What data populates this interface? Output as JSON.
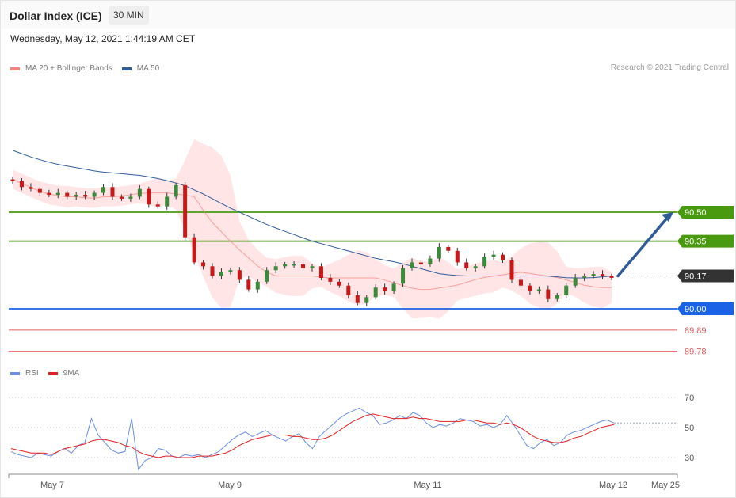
{
  "header": {
    "title": "Dollar Index (ICE)",
    "interval": "30 MIN",
    "datetime": "Wednesday, May 12, 2021 1:44:19 AM CET",
    "copyright": "Research © 2021 Trading Central"
  },
  "legend_main": [
    {
      "label": "MA 20 + Bollinger Bands",
      "color": "#f4827e"
    },
    {
      "label": "MA 50",
      "color": "#2f5b99"
    }
  ],
  "legend_rsi": [
    {
      "label": "RSI",
      "color": "#6a8ee0"
    },
    {
      "label": "9MA",
      "color": "#e02020"
    }
  ],
  "colors": {
    "up": "#3a8a3a",
    "down": "#c91818",
    "resistance": "#4a9a10",
    "support": "#1a63e6",
    "support_minor": "#e06060",
    "current": "#333333",
    "arrow": "#2f5b99",
    "bollinger_fill": "#ffdcdc"
  },
  "chart_data": {
    "type": "candlestick",
    "instrument": "Dollar Index (ICE)",
    "timeframe": "30 MIN",
    "x_tick_labels": [
      "May 7",
      "May 9",
      "May 11",
      "May 12",
      "May 25"
    ],
    "price_levels": [
      {
        "value": 90.5,
        "label": "90.50",
        "kind": "resistance"
      },
      {
        "value": 90.35,
        "label": "90.35",
        "kind": "resistance"
      },
      {
        "value": 90.17,
        "label": "90.17",
        "kind": "current"
      },
      {
        "value": 90.0,
        "label": "90.00",
        "kind": "support"
      },
      {
        "value": 89.89,
        "label": "89.89",
        "kind": "support_minor"
      },
      {
        "value": 89.78,
        "label": "89.78",
        "kind": "support_minor"
      }
    ],
    "price_ylim": [
      89.69,
      91.06
    ],
    "projection": {
      "from": 90.17,
      "to": 90.5,
      "direction": "up"
    },
    "close": [
      90.66,
      90.63,
      90.62,
      90.6,
      90.59,
      90.6,
      90.58,
      90.59,
      90.58,
      90.6,
      90.63,
      90.58,
      90.57,
      90.58,
      90.62,
      90.54,
      90.53,
      90.58,
      90.64,
      90.37,
      90.24,
      90.22,
      90.17,
      90.19,
      90.2,
      90.15,
      90.1,
      90.14,
      90.2,
      90.22,
      90.23,
      90.23,
      90.21,
      90.22,
      90.16,
      90.14,
      90.12,
      90.07,
      90.03,
      90.06,
      90.11,
      90.09,
      90.13,
      90.21,
      90.24,
      90.23,
      90.26,
      90.32,
      90.3,
      90.24,
      90.21,
      90.22,
      90.27,
      90.28,
      90.25,
      90.15,
      90.12,
      90.09,
      90.1,
      90.05,
      90.07,
      90.12,
      90.16,
      90.17,
      90.18,
      90.17,
      90.16
    ],
    "ma20": [
      90.67,
      90.64,
      90.61,
      90.59,
      90.58,
      90.58,
      90.57,
      90.58,
      90.58,
      90.59,
      90.6,
      90.6,
      90.6,
      90.59,
      90.58,
      90.47,
      90.4,
      90.33,
      90.27,
      90.21,
      90.17,
      90.17,
      90.17,
      90.17,
      90.16,
      90.16,
      90.16,
      90.16,
      90.16,
      90.14,
      90.12,
      90.1,
      90.1,
      90.11,
      90.12,
      90.14,
      90.16,
      90.17,
      90.18,
      90.19,
      90.18,
      90.17,
      90.16,
      90.14,
      90.12,
      90.11,
      90.11
    ],
    "ma50": [
      90.82,
      90.78,
      90.75,
      90.73,
      90.71,
      90.7,
      90.69,
      90.67,
      90.64,
      90.59,
      90.53,
      90.48,
      90.43,
      90.39,
      90.35,
      90.32,
      90.29,
      90.26,
      90.24,
      90.21,
      90.18,
      90.17,
      90.17,
      90.17,
      90.17,
      90.17,
      90.16,
      90.16,
      90.17
    ],
    "rsi_ticks": [
      70,
      50,
      30
    ],
    "rsi_ylim": [
      22,
      78
    ],
    "rsi": [
      34,
      32,
      31,
      30,
      33,
      32,
      31,
      34,
      36,
      33,
      38,
      40,
      56,
      45,
      40,
      35,
      33,
      34,
      56,
      22,
      28,
      30,
      36,
      35,
      31,
      30,
      32,
      31,
      32,
      30,
      32,
      34,
      38,
      42,
      45,
      47,
      44,
      46,
      48,
      45,
      43,
      41,
      44,
      46,
      40,
      36,
      44,
      48,
      52,
      56,
      59,
      61,
      63,
      60,
      58,
      52,
      53,
      55,
      58,
      56,
      60,
      58,
      53,
      50,
      52,
      51,
      53,
      56,
      55,
      54,
      51,
      52,
      50,
      52,
      58,
      52,
      45,
      38,
      36,
      40,
      42,
      38,
      40,
      45,
      47,
      48,
      50,
      52,
      54,
      55,
      53
    ],
    "rsi_ma9": [
      36,
      35,
      34,
      33,
      33,
      33,
      32,
      34,
      36,
      37,
      38,
      39,
      41,
      42,
      42,
      41,
      40,
      38,
      37,
      34,
      32,
      31,
      30,
      31,
      31,
      30,
      30,
      30,
      31,
      31,
      31,
      32,
      33,
      35,
      38,
      40,
      42,
      43,
      44,
      45,
      45,
      45,
      44,
      44,
      43,
      42,
      42,
      43,
      45,
      48,
      51,
      54,
      56,
      58,
      59,
      58,
      57,
      56,
      56,
      56,
      57,
      56,
      56,
      55,
      54,
      54,
      54,
      54,
      55,
      55,
      54,
      53,
      53,
      52,
      53,
      52,
      50,
      47,
      44,
      42,
      41,
      40,
      40,
      41,
      43,
      44,
      46,
      48,
      50,
      51,
      52
    ]
  }
}
